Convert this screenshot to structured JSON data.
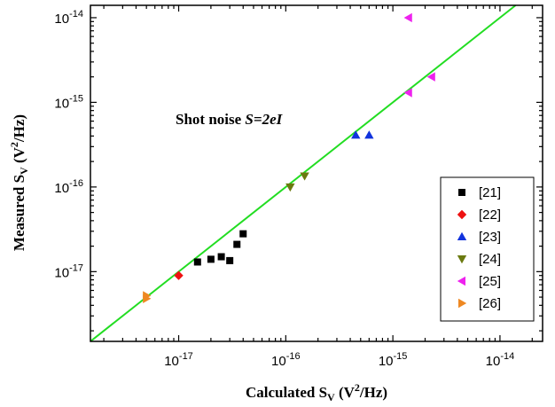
{
  "chart_data": {
    "type": "scatter",
    "x_scale": "log",
    "y_scale": "log",
    "xlim": [
      1.5e-18,
      2.5e-14
    ],
    "ylim": [
      1.5e-18,
      1.4e-14
    ],
    "xlabel": {
      "main": "Calculated S",
      "sub": "V",
      "open": " (V",
      "sup": "2",
      "close": "/Hz)"
    },
    "ylabel": {
      "main": "Measured S",
      "sub": "V",
      "open": " (V",
      "sup": "2",
      "close": "/Hz)"
    },
    "x_ticks": [
      {
        "value": 1e-17,
        "base": "10",
        "exp": "-17"
      },
      {
        "value": 1e-16,
        "base": "10",
        "exp": "-16"
      },
      {
        "value": 1e-15,
        "base": "10",
        "exp": "-15"
      },
      {
        "value": 1e-14,
        "base": "10",
        "exp": "-14"
      }
    ],
    "y_ticks": [
      {
        "value": 1e-17,
        "base": "10",
        "exp": "-17"
      },
      {
        "value": 1e-16,
        "base": "10",
        "exp": "-16"
      },
      {
        "value": 1e-15,
        "base": "10",
        "exp": "-15"
      },
      {
        "value": 1e-14,
        "base": "10",
        "exp": "-14"
      }
    ],
    "annotation": {
      "text": "Shot noise ",
      "formula": "S=2eI"
    },
    "reference_line": {
      "slope": 1,
      "color": "#22dd22"
    },
    "legend_position": "right",
    "series": [
      {
        "name": "[21]",
        "marker": "square",
        "color": "#000000",
        "points": [
          [
            1.5e-17,
            1.3e-17
          ],
          [
            2e-17,
            1.4e-17
          ],
          [
            2.5e-17,
            1.5e-17
          ],
          [
            3e-17,
            1.35e-17
          ],
          [
            3.5e-17,
            2.1e-17
          ],
          [
            4e-17,
            2.8e-17
          ]
        ]
      },
      {
        "name": "[22]",
        "marker": "diamond",
        "color": "#ee1111",
        "points": [
          [
            1e-17,
            9e-18
          ]
        ]
      },
      {
        "name": "[23]",
        "marker": "triangle-up",
        "color": "#1133dd",
        "points": [
          [
            4.5e-16,
            4.1e-16
          ],
          [
            6e-16,
            4.1e-16
          ]
        ]
      },
      {
        "name": "[24]",
        "marker": "triangle-down",
        "color": "#6b7a10",
        "points": [
          [
            1.1e-16,
            1e-16
          ],
          [
            1.5e-16,
            1.35e-16
          ]
        ]
      },
      {
        "name": "[25]",
        "marker": "triangle-left",
        "color": "#ee22ee",
        "points": [
          [
            1.4e-15,
            1e-14
          ],
          [
            1.4e-15,
            1.3e-15
          ],
          [
            2.3e-15,
            2e-15
          ]
        ]
      },
      {
        "name": "[26]",
        "marker": "triangle-right",
        "color": "#ee8822",
        "points": [
          [
            5e-18,
            4.8e-18
          ],
          [
            5e-18,
            5.2e-18
          ]
        ]
      }
    ]
  }
}
